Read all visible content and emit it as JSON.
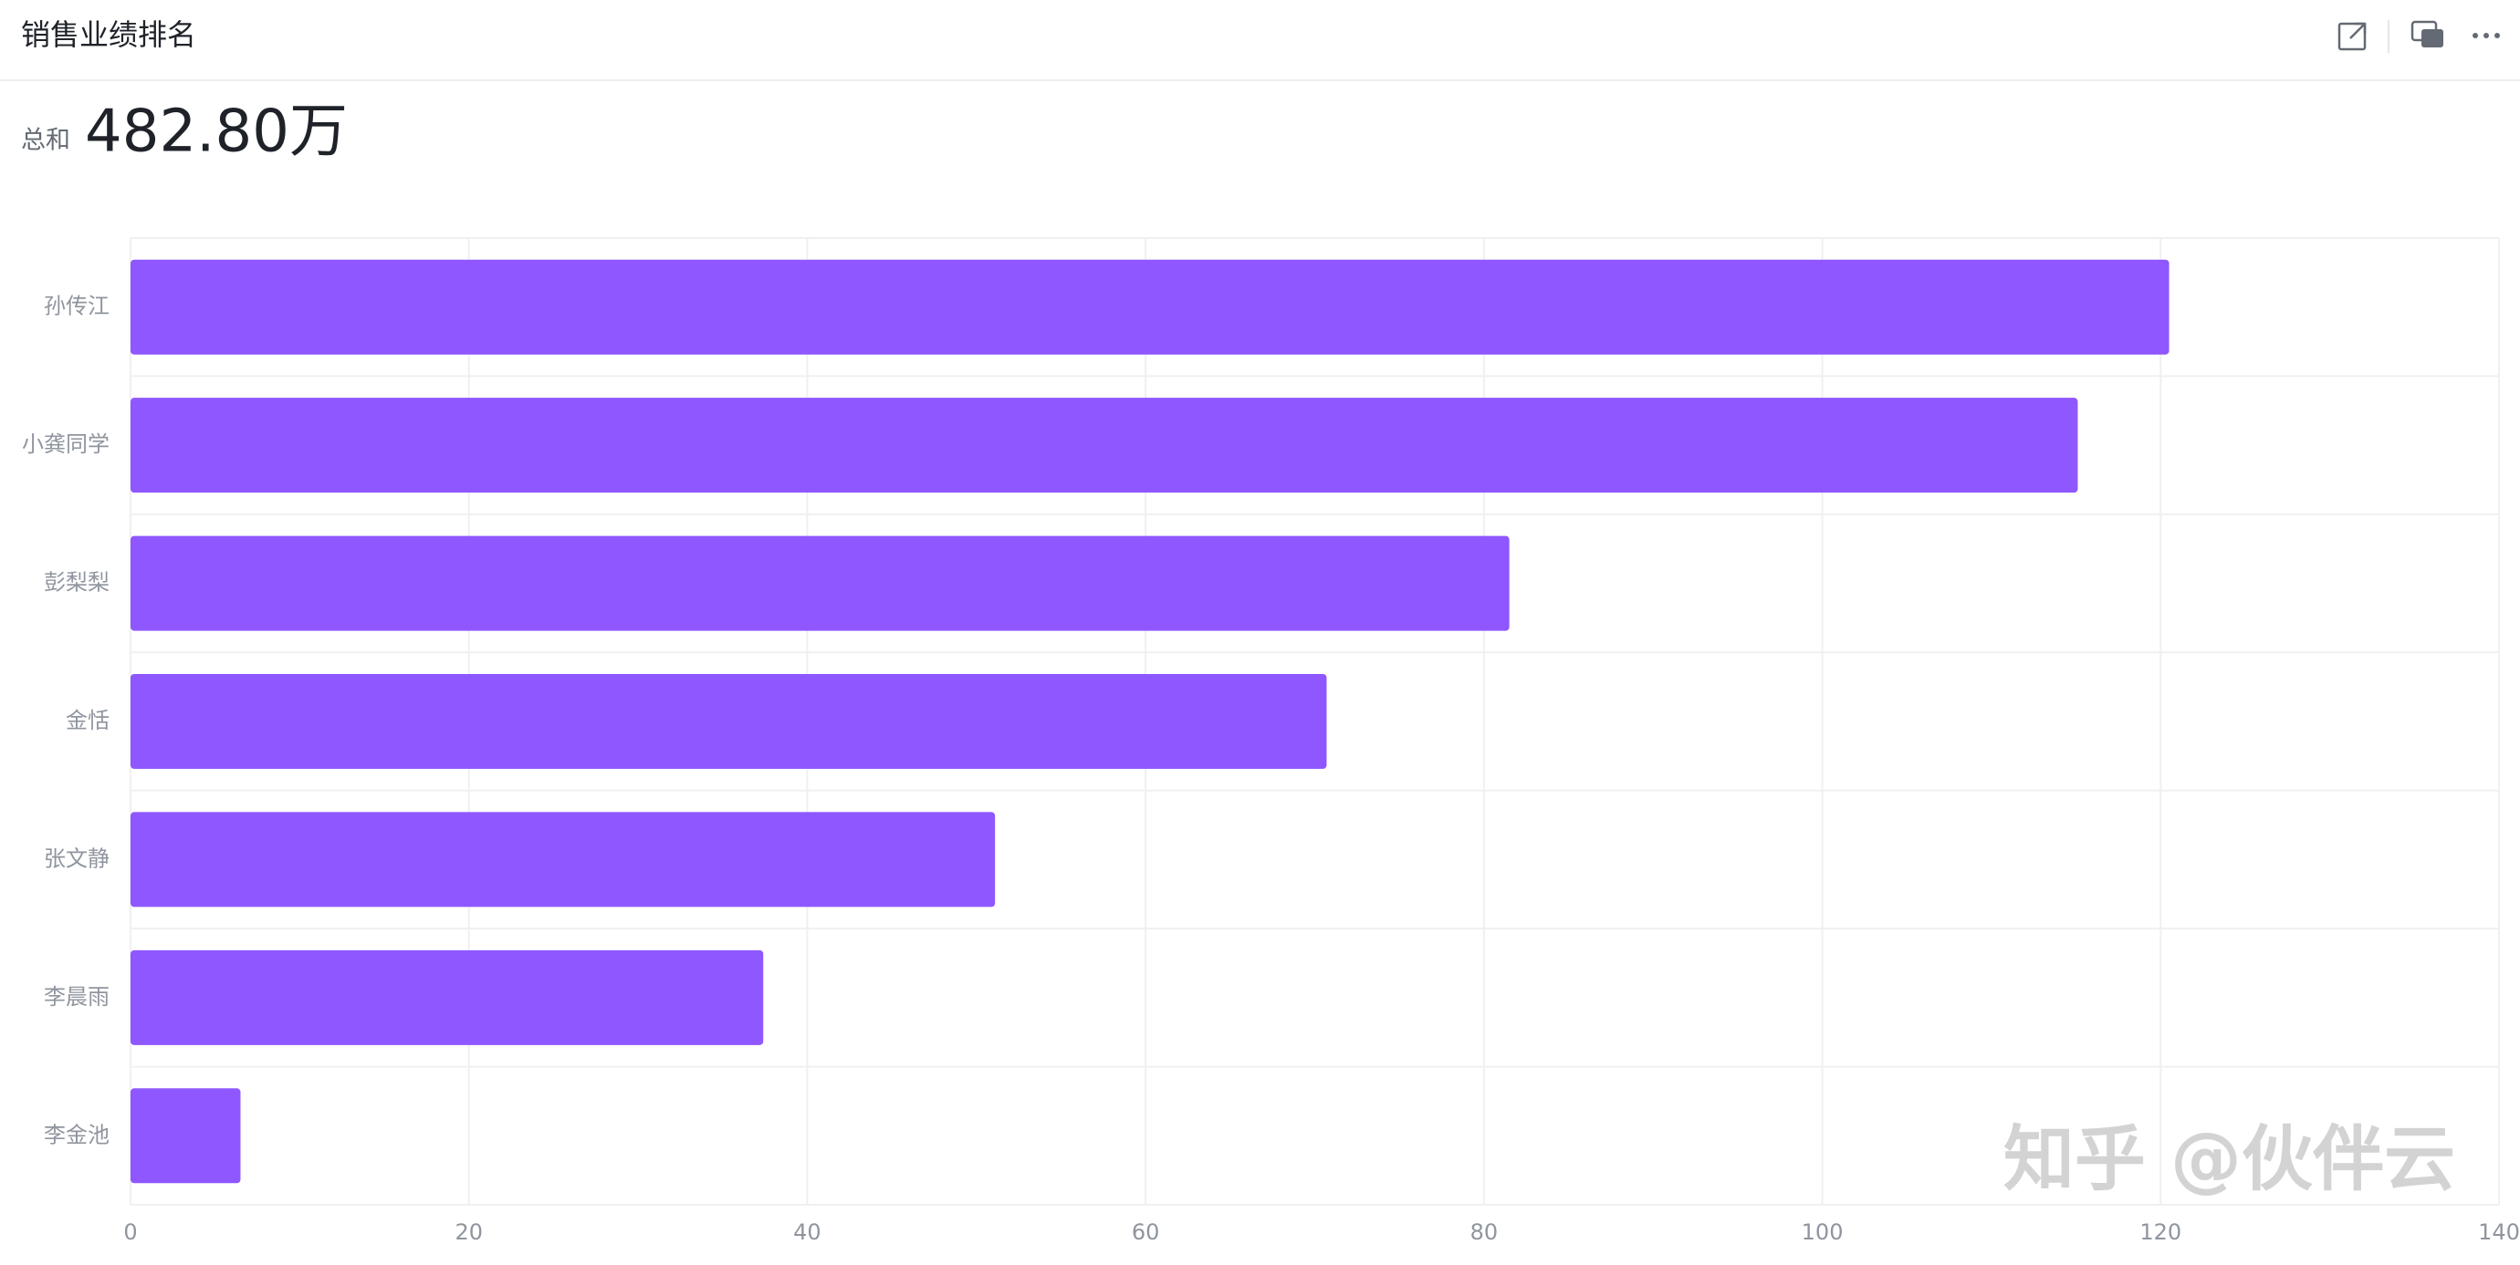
{
  "header": {
    "title": "销售业绩排名"
  },
  "summary": {
    "label": "总和",
    "value": "482.80万"
  },
  "watermark": "知乎 @伙伴云",
  "chart_data": {
    "type": "bar",
    "orientation": "horizontal",
    "categories": [
      "孙传江",
      "小龚同学",
      "彭梨梨",
      "金恬",
      "张文静",
      "李晨雨",
      "李金池"
    ],
    "values": [
      120.5,
      115.1,
      81.5,
      70.7,
      51.1,
      37.4,
      6.5
    ],
    "color": "#8e57ff",
    "xlim": [
      0,
      140
    ],
    "xticks": [
      0,
      20,
      40,
      60,
      80,
      100,
      120,
      140
    ],
    "grid": true
  }
}
